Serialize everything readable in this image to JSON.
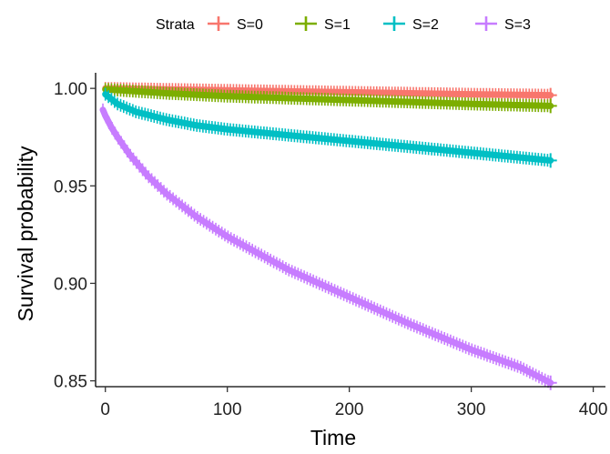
{
  "chart_data": {
    "type": "line",
    "title": "",
    "xlabel": "Time",
    "ylabel": "Survival probability",
    "xlim": [
      -8,
      410
    ],
    "ylim": [
      0.847,
      1.008
    ],
    "xticks": [
      0,
      100,
      200,
      300,
      400
    ],
    "xtick_labels": [
      "0",
      "100",
      "200",
      "300",
      "400"
    ],
    "yticks": [
      0.85,
      0.9,
      0.95,
      1.0
    ],
    "ytick_labels": [
      "0.85",
      "0.90",
      "0.95",
      "1.00"
    ],
    "grid": false,
    "legend": {
      "title": "Strata",
      "placement": "top"
    },
    "series": [
      {
        "name": "S=0",
        "color": "#F8766D",
        "x": [
          0,
          50,
          100,
          150,
          200,
          250,
          300,
          365
        ],
        "y": [
          1.0,
          0.9995,
          0.999,
          0.9985,
          0.998,
          0.9975,
          0.997,
          0.9965
        ]
      },
      {
        "name": "S=1",
        "color": "#7CAE00",
        "x": [
          0,
          50,
          100,
          150,
          200,
          250,
          300,
          365
        ],
        "y": [
          0.9995,
          0.9975,
          0.996,
          0.995,
          0.994,
          0.993,
          0.992,
          0.991
        ]
      },
      {
        "name": "S=2",
        "color": "#00BFC4",
        "x": [
          0,
          10,
          25,
          50,
          75,
          100,
          150,
          200,
          250,
          300,
          365
        ],
        "y": [
          0.997,
          0.992,
          0.988,
          0.984,
          0.981,
          0.979,
          0.976,
          0.973,
          0.97,
          0.967,
          0.963
        ]
      },
      {
        "name": "S=3",
        "color": "#C77CFF",
        "x": [
          -2,
          0,
          5,
          10,
          20,
          35,
          50,
          75,
          100,
          150,
          200,
          250,
          300,
          340,
          365
        ],
        "y": [
          0.989,
          0.986,
          0.98,
          0.975,
          0.966,
          0.955,
          0.946,
          0.934,
          0.924,
          0.907,
          0.893,
          0.879,
          0.866,
          0.857,
          0.849
        ]
      }
    ]
  }
}
